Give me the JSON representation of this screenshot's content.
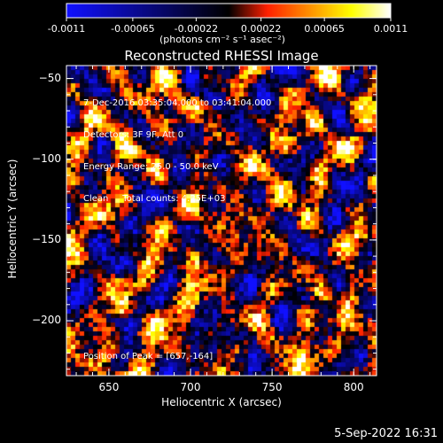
{
  "colorbar": {
    "ticks": [
      "-0.0011",
      "-0.00065",
      "-0.00022",
      "0.00022",
      "0.00065",
      "0.0011"
    ],
    "tick_values": [
      -0.0011,
      -0.00065,
      -0.00022,
      0.00022,
      0.00065,
      0.0011
    ],
    "range": [
      -0.0011,
      0.0011
    ],
    "unit_label": "(photons cm⁻² s⁻¹ asec⁻²)",
    "colors": [
      "#1010ff",
      "#000000",
      "#ff2000",
      "#ff8800",
      "#ffff00",
      "#ffffff"
    ]
  },
  "chart_data": {
    "type": "heatmap",
    "title": "Reconstructed RHESSI Image",
    "xlabel": "Heliocentric X (arcsec)",
    "ylabel": "Heliocentric Y (arcsec)",
    "xlim": [
      624,
      814
    ],
    "ylim": [
      -234,
      -42
    ],
    "xticks": [
      650,
      700,
      750,
      800
    ],
    "yticks": [
      -50,
      -100,
      -150,
      -200
    ],
    "xtick_labels": [
      "650",
      "700",
      "750",
      "800"
    ],
    "ytick_labels": [
      "−50",
      "−100",
      "−150",
      "−200"
    ],
    "annotations": [
      "7-Dec-2016 03:35:04.000 to 03:41:04.000",
      "Detectors: 3F 9F, Att 0",
      "Energy Range: 25.0 - 50.0 keV",
      "Clean     Total counts: 4.25E+03"
    ],
    "peak_label": "Position of Peak = [657,-164]",
    "peak": [
      657,
      -164
    ]
  },
  "timestamp": "5-Sep-2022 16:31"
}
